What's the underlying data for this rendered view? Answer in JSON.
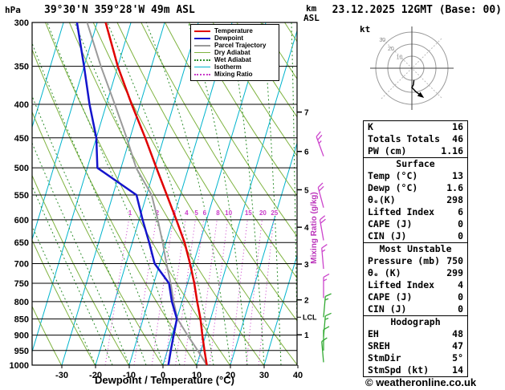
{
  "header": {
    "pressure_unit": "hPa",
    "station": "39°30'N 359°28'W 49m ASL",
    "altitude_unit_top": "km",
    "altitude_unit_bottom": "ASL",
    "datetime": "23.12.2025 12GMT (Base: 00)"
  },
  "legend": {
    "items": [
      {
        "label": "Temperature",
        "color": "#e00000",
        "style": "solid",
        "weight": 2
      },
      {
        "label": "Dewpoint",
        "color": "#1414cc",
        "style": "solid",
        "weight": 2
      },
      {
        "label": "Parcel Trajectory",
        "color": "#9a9a9a",
        "style": "solid",
        "weight": 2
      },
      {
        "label": "Dry Adiabat",
        "color": "#7fb340",
        "style": "solid",
        "weight": 1
      },
      {
        "label": "Wet Adiabat",
        "color": "#2f8f2f",
        "style": "dotted",
        "weight": 2
      },
      {
        "label": "Isotherm",
        "color": "#00b4cd",
        "style": "solid",
        "weight": 1
      },
      {
        "label": "Mixing Ratio",
        "color": "#c93cc9",
        "style": "dotted",
        "weight": 2
      }
    ]
  },
  "chart_data": {
    "type": "skewt-log-p",
    "title": "39°30'N 359°28'W 49m ASL",
    "xlabel": "Dewpoint / Temperature (°C)",
    "ylabel": "hPa",
    "right_axis_label": "km ASL",
    "mixing_ratio_axis_label": "Mixing Ratio (g/kg)",
    "x_ticks": [
      -30,
      -20,
      -10,
      0,
      10,
      20,
      30,
      40
    ],
    "pressure_ticks": [
      300,
      350,
      400,
      450,
      500,
      550,
      600,
      650,
      700,
      750,
      800,
      850,
      900,
      950,
      1000
    ],
    "mixing_ratio_lines": [
      1,
      2,
      3,
      4,
      5,
      6,
      8,
      10,
      15,
      20,
      25
    ],
    "km_ticks": [
      {
        "km": 1,
        "p": 899
      },
      {
        "km": 2,
        "p": 795
      },
      {
        "km": 3,
        "p": 701
      },
      {
        "km": 4,
        "p": 616
      },
      {
        "km": 5,
        "p": 540
      },
      {
        "km": 6,
        "p": 472
      },
      {
        "km": 7,
        "p": 411
      }
    ],
    "lcl": {
      "label": "LCL",
      "p": 845
    },
    "colors": {
      "temperature": "#e00000",
      "dewpoint": "#1414cc",
      "parcel": "#9a9a9a",
      "dry_adiabat": "#7fb340",
      "wet_adiabat": "#2f8f2f",
      "isotherm": "#00b4cd",
      "mixing_ratio": "#c93cc9",
      "barb_upper": "#cc44cc",
      "barb_lower": "#33aa33"
    },
    "sounding": {
      "pressure": [
        1000,
        950,
        900,
        850,
        800,
        750,
        700,
        650,
        600,
        550,
        500,
        450,
        400,
        350,
        300
      ],
      "temperature": [
        13,
        11,
        9,
        7,
        4.5,
        2,
        -1,
        -4.5,
        -9,
        -14,
        -19.5,
        -25.5,
        -32.5,
        -40,
        -47.5
      ],
      "dewpoint": [
        1.6,
        1,
        0.5,
        0,
        -3,
        -5.5,
        -11.5,
        -15,
        -19,
        -23,
        -37,
        -40,
        -45,
        -50,
        -56
      ],
      "parcel": [
        13,
        9,
        4.6,
        0.2,
        -2.5,
        -5,
        -8,
        -11,
        -14.5,
        -18.5,
        -25.5,
        -31,
        -37.5,
        -45,
        -53
      ]
    },
    "wind_barbs": [
      {
        "p": 480,
        "dir": 340,
        "spd": 25,
        "color": "#cc44cc"
      },
      {
        "p": 575,
        "dir": 345,
        "spd": 20,
        "color": "#cc44cc"
      },
      {
        "p": 645,
        "dir": 350,
        "spd": 20,
        "color": "#cc44cc"
      },
      {
        "p": 713,
        "dir": 355,
        "spd": 15,
        "color": "#cc44cc"
      },
      {
        "p": 790,
        "dir": 0,
        "spd": 15,
        "color": "#cc44cc"
      },
      {
        "p": 845,
        "dir": 5,
        "spd": 15,
        "color": "#33aa33"
      },
      {
        "p": 905,
        "dir": 5,
        "spd": 15,
        "color": "#33aa33"
      },
      {
        "p": 950,
        "dir": 0,
        "spd": 10,
        "color": "#33aa33"
      },
      {
        "p": 990,
        "dir": 355,
        "spd": 10,
        "color": "#33aa33"
      }
    ]
  },
  "hodograph": {
    "unit": "kt",
    "rings_kt": [
      10,
      20,
      30
    ],
    "ring_labels": [
      "10",
      "20",
      "30"
    ],
    "trace": [
      {
        "dir": 350,
        "spd": 10
      },
      {
        "dir": 355,
        "spd": 14
      },
      {
        "dir": 0,
        "spd": 16
      },
      {
        "dir": 350,
        "spd": 20
      },
      {
        "dir": 340,
        "spd": 25
      }
    ]
  },
  "indices": {
    "groups": [
      {
        "title": null,
        "rows": [
          [
            "K",
            "16"
          ],
          [
            "Totals Totals",
            "46"
          ],
          [
            "PW (cm)",
            "1.16"
          ]
        ]
      },
      {
        "title": "Surface",
        "rows": [
          [
            "Temp (°C)",
            "13"
          ],
          [
            "Dewp (°C)",
            "1.6"
          ],
          [
            "θₑ(K)",
            "298"
          ],
          [
            "Lifted Index",
            "6"
          ],
          [
            "CAPE (J)",
            "0"
          ],
          [
            "CIN (J)",
            "0"
          ]
        ]
      },
      {
        "title": "Most Unstable",
        "rows": [
          [
            "Pressure (mb)",
            "750"
          ],
          [
            "θₑ (K)",
            "299"
          ],
          [
            "Lifted Index",
            "4"
          ],
          [
            "CAPE (J)",
            "0"
          ],
          [
            "CIN (J)",
            "0"
          ]
        ]
      },
      {
        "title": "Hodograph",
        "rows": [
          [
            "EH",
            "48"
          ],
          [
            "SREH",
            "47"
          ],
          [
            "StmDir",
            "5°"
          ],
          [
            "StmSpd (kt)",
            "14"
          ]
        ]
      }
    ]
  },
  "footer": {
    "copyright": "© weatheronline.co.uk"
  }
}
